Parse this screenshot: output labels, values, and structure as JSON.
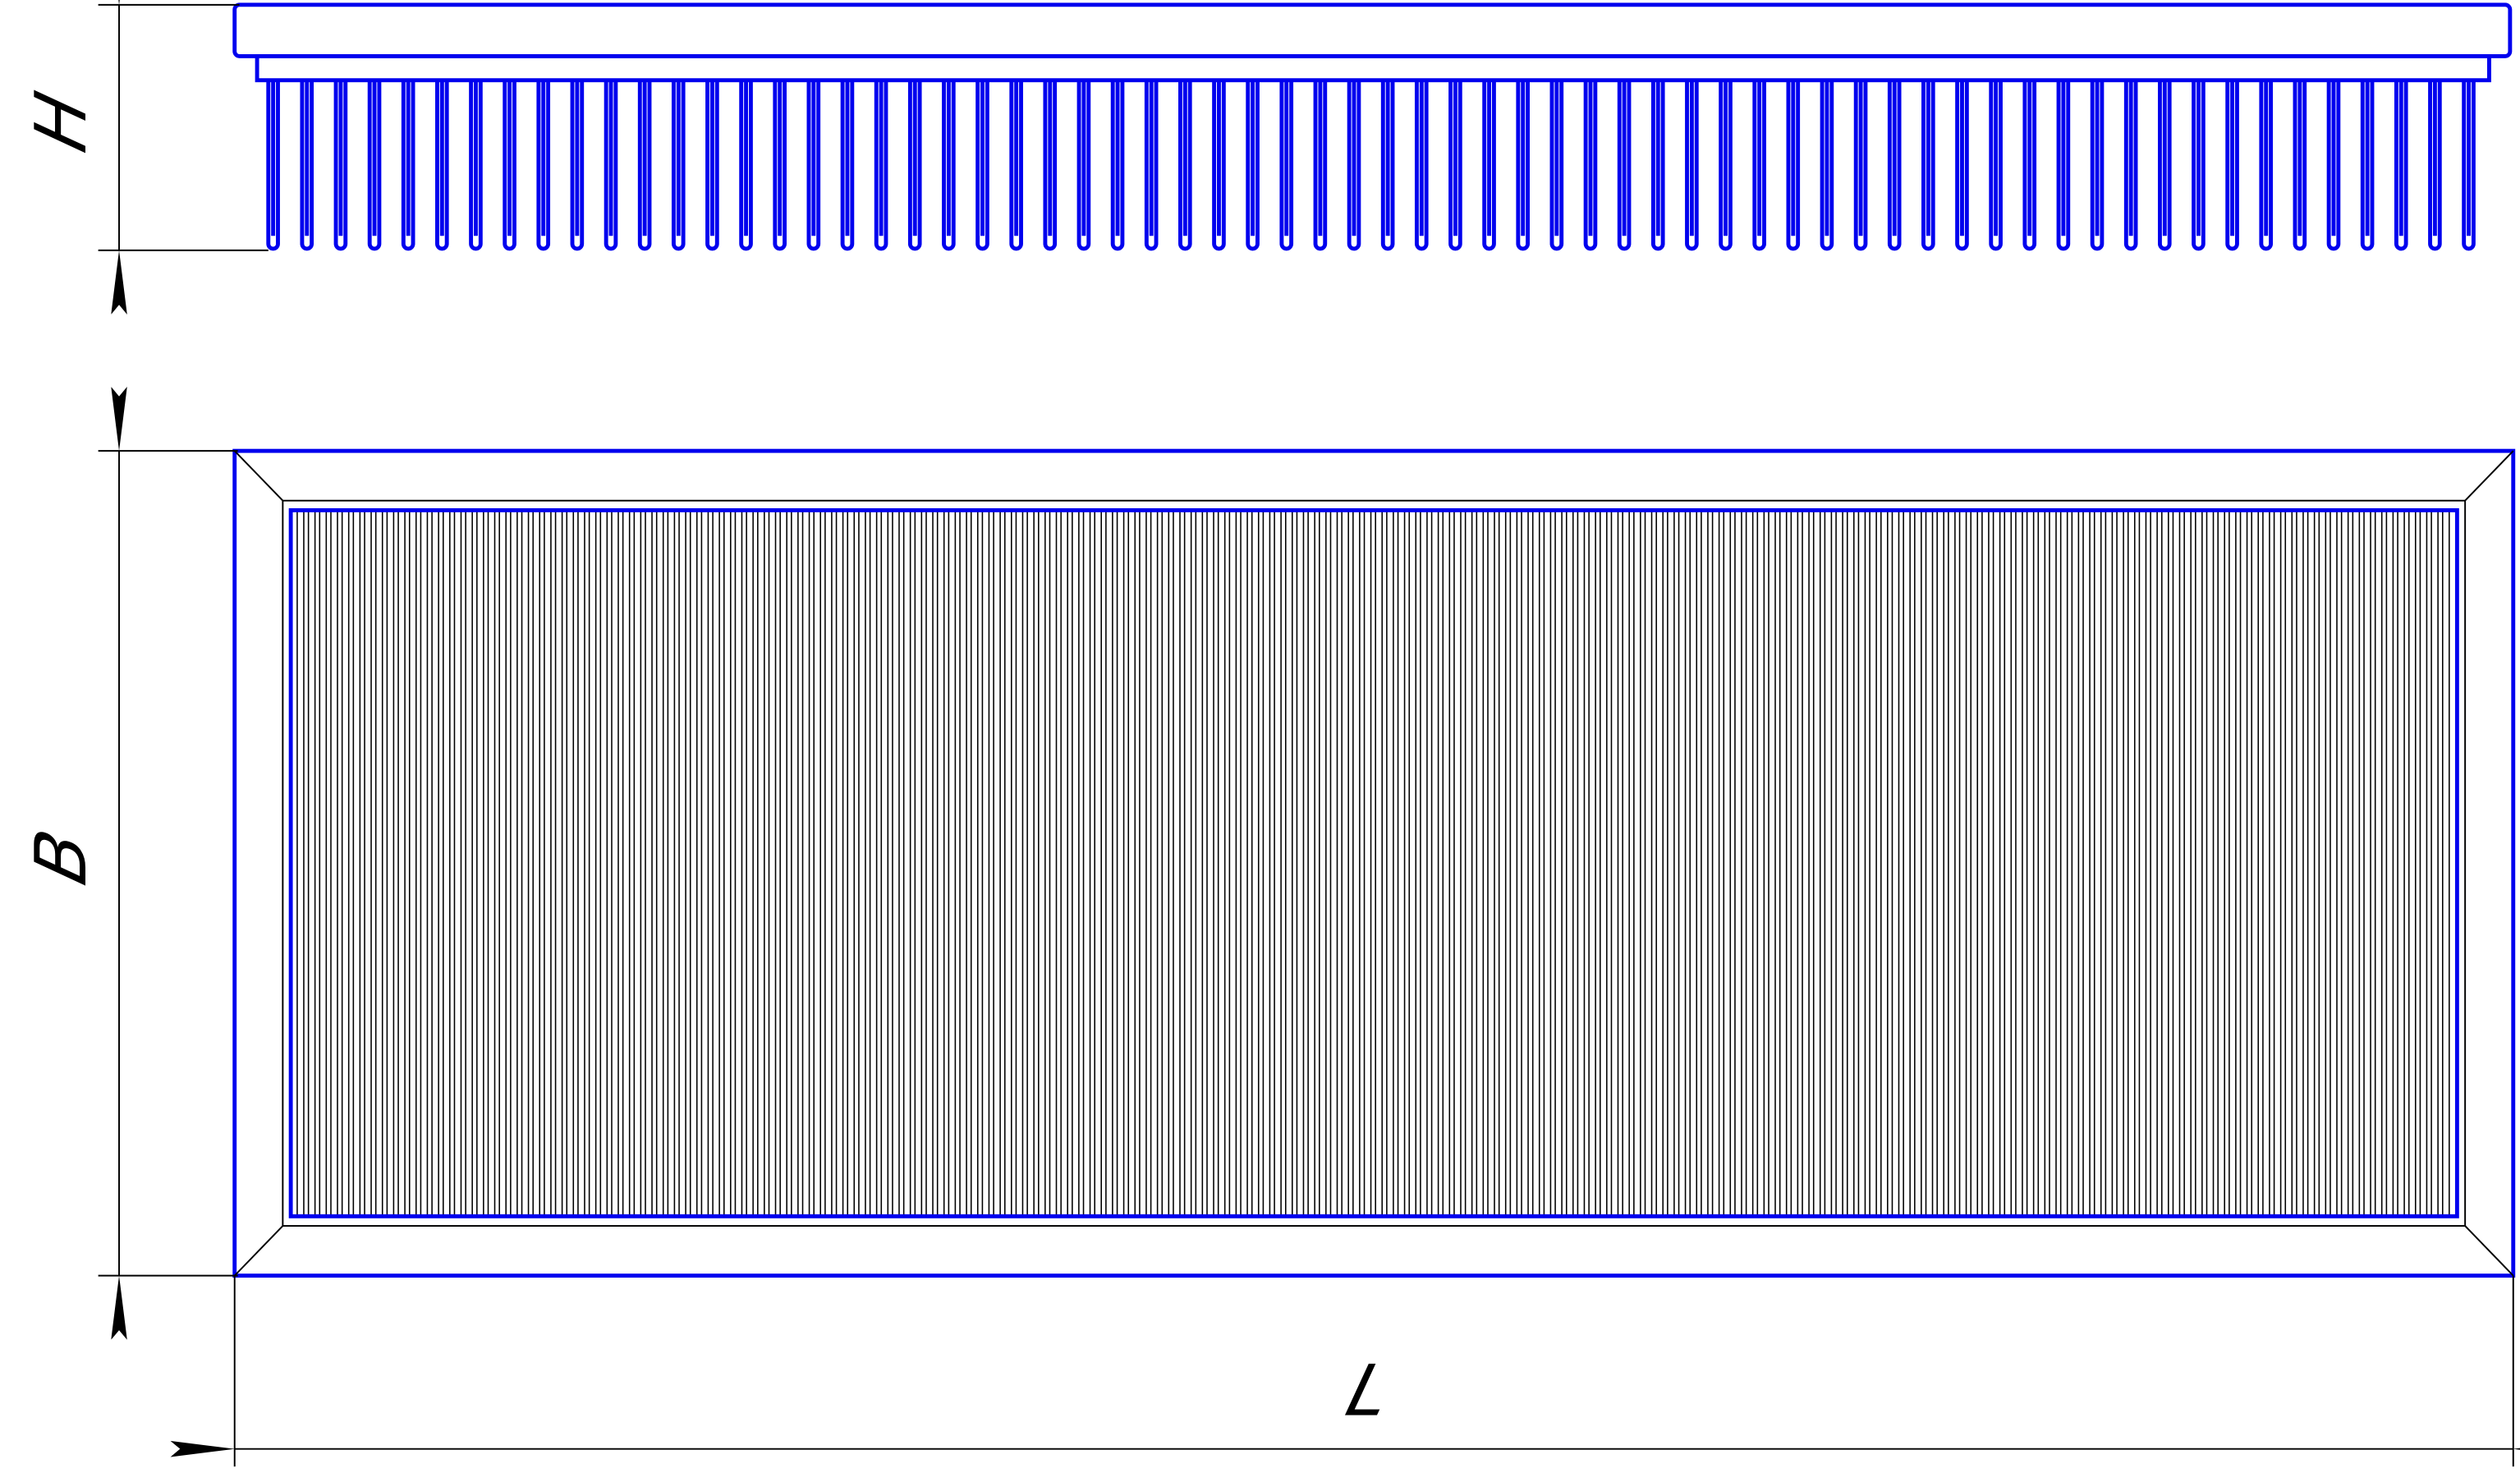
{
  "drawing": {
    "dimensions": {
      "height_label": "H",
      "width_label": "B",
      "length_label": "L"
    },
    "colors": {
      "outline": "#0000ee",
      "dimension": "#000000",
      "background": "#ffffff"
    }
  }
}
